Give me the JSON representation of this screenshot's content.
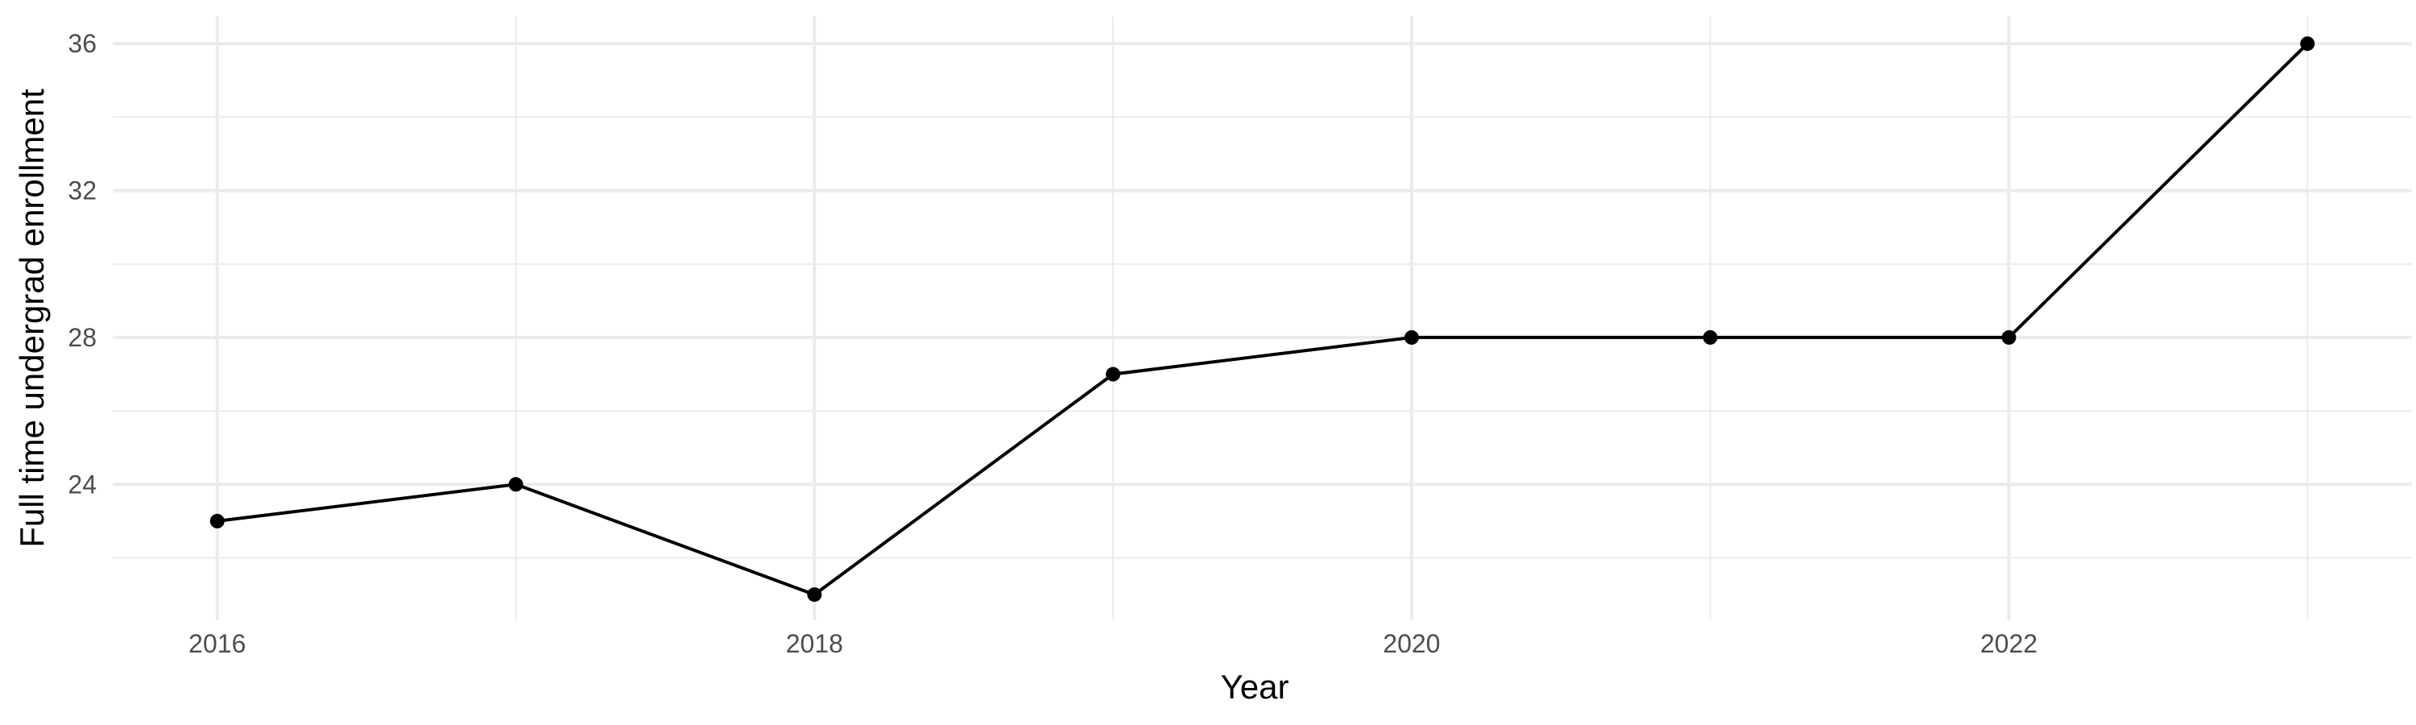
{
  "chart_data": {
    "type": "line",
    "title": "",
    "xlabel": "Year",
    "ylabel": "Full time undergrad enrollment",
    "x": [
      2016,
      2017,
      2018,
      2019,
      2020,
      2021,
      2022,
      2023
    ],
    "series": [
      {
        "values": [
          23,
          24,
          21,
          27,
          28,
          28,
          28,
          36
        ]
      }
    ],
    "xlim": [
      2015.65,
      2023.35
    ],
    "ylim": [
      20.3,
      36.75
    ],
    "x_ticks": [
      2016,
      2018,
      2020,
      2022
    ],
    "y_ticks": [
      24,
      28,
      32,
      36
    ],
    "x_minor_ticks": [
      2017,
      2019,
      2021,
      2023
    ],
    "y_minor_ticks": [
      22,
      26,
      30,
      34
    ],
    "grid": true,
    "legend": "none",
    "colors": {
      "line": "#000000",
      "point": "#000000",
      "grid": "#ebebeb",
      "background": "#ffffff"
    }
  }
}
